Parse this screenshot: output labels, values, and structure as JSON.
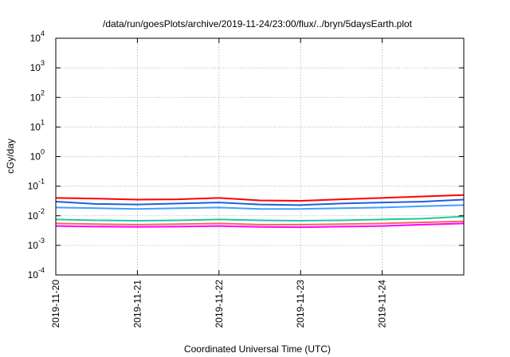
{
  "chart_data": {
    "type": "line",
    "title": "/data/run/goesPlots/archive/2019-11-24/23:00/flux/../bryn/5daysEarth.plot",
    "xlabel": "Coordinated Universal Time (UTC)",
    "ylabel": "cGy/day",
    "xscale": "time",
    "yscale": "log",
    "xlim": [
      "2019-11-20T00:00",
      "2019-11-25T00:00"
    ],
    "ylim": [
      0.0001,
      10000
    ],
    "grid": true,
    "legend": "none",
    "x_tick_labels": [
      "2019-11-20",
      "2019-11-21",
      "2019-11-22",
      "2019-11-23",
      "2019-11-24"
    ],
    "y_ticks": [
      {
        "value": 0.0001,
        "base": "10",
        "exp": "-4"
      },
      {
        "value": 0.001,
        "base": "10",
        "exp": "-3"
      },
      {
        "value": 0.01,
        "base": "10",
        "exp": "-2"
      },
      {
        "value": 0.1,
        "base": "10",
        "exp": "-1"
      },
      {
        "value": 1,
        "base": "10",
        "exp": "0"
      },
      {
        "value": 10,
        "base": "10",
        "exp": "1"
      },
      {
        "value": 100,
        "base": "10",
        "exp": "2"
      },
      {
        "value": 1000,
        "base": "10",
        "exp": "3"
      },
      {
        "value": 10000,
        "base": "10",
        "exp": "4"
      }
    ],
    "series_colors": [
      "#ff0000",
      "#1f5fdc",
      "#3ea0ff",
      "#20c8a0",
      "#ff6060",
      "#ff00ff"
    ],
    "series": [
      {
        "color": "#ff0000",
        "x": [
          "2019-11-20T00:00",
          "2019-11-20T12:00",
          "2019-11-21T00:00",
          "2019-11-21T12:00",
          "2019-11-22T00:00",
          "2019-11-22T12:00",
          "2019-11-23T00:00",
          "2019-11-23T12:00",
          "2019-11-24T00:00",
          "2019-11-24T12:00",
          "2019-11-25T00:00"
        ],
        "y": [
          0.04,
          0.038,
          0.035,
          0.036,
          0.04,
          0.033,
          0.032,
          0.036,
          0.04,
          0.045,
          0.05
        ]
      },
      {
        "color": "#1f5fdc",
        "x": [
          "2019-11-20T00:00",
          "2019-11-20T12:00",
          "2019-11-21T00:00",
          "2019-11-21T12:00",
          "2019-11-22T00:00",
          "2019-11-22T12:00",
          "2019-11-23T00:00",
          "2019-11-23T12:00",
          "2019-11-24T00:00",
          "2019-11-24T12:00",
          "2019-11-25T00:00"
        ],
        "y": [
          0.03,
          0.025,
          0.024,
          0.026,
          0.028,
          0.024,
          0.023,
          0.026,
          0.028,
          0.03,
          0.035
        ]
      },
      {
        "color": "#3ea0ff",
        "x": [
          "2019-11-20T00:00",
          "2019-11-20T12:00",
          "2019-11-21T00:00",
          "2019-11-21T12:00",
          "2019-11-22T00:00",
          "2019-11-22T12:00",
          "2019-11-23T00:00",
          "2019-11-23T12:00",
          "2019-11-24T00:00",
          "2019-11-24T12:00",
          "2019-11-25T00:00"
        ],
        "y": [
          0.019,
          0.018,
          0.017,
          0.018,
          0.019,
          0.017,
          0.017,
          0.018,
          0.019,
          0.021,
          0.023
        ]
      },
      {
        "color": "#20c8a0",
        "x": [
          "2019-11-20T00:00",
          "2019-11-20T12:00",
          "2019-11-21T00:00",
          "2019-11-21T12:00",
          "2019-11-22T00:00",
          "2019-11-22T12:00",
          "2019-11-23T00:00",
          "2019-11-23T12:00",
          "2019-11-24T00:00",
          "2019-11-24T12:00",
          "2019-11-25T00:00"
        ],
        "y": [
          0.0075,
          0.007,
          0.0068,
          0.007,
          0.0075,
          0.007,
          0.0068,
          0.007,
          0.0075,
          0.008,
          0.0095
        ]
      },
      {
        "color": "#ff6060",
        "x": [
          "2019-11-20T00:00",
          "2019-11-20T12:00",
          "2019-11-21T00:00",
          "2019-11-21T12:00",
          "2019-11-22T00:00",
          "2019-11-22T12:00",
          "2019-11-23T00:00",
          "2019-11-23T12:00",
          "2019-11-24T00:00",
          "2019-11-24T12:00",
          "2019-11-25T00:00"
        ],
        "y": [
          0.0055,
          0.0052,
          0.005,
          0.0052,
          0.0055,
          0.005,
          0.005,
          0.0052,
          0.0055,
          0.006,
          0.0065
        ]
      },
      {
        "color": "#ff00ff",
        "x": [
          "2019-11-20T00:00",
          "2019-11-20T12:00",
          "2019-11-21T00:00",
          "2019-11-21T12:00",
          "2019-11-22T00:00",
          "2019-11-22T12:00",
          "2019-11-23T00:00",
          "2019-11-23T12:00",
          "2019-11-24T00:00",
          "2019-11-24T12:00",
          "2019-11-25T00:00"
        ],
        "y": [
          0.0045,
          0.0043,
          0.0042,
          0.0043,
          0.0045,
          0.0042,
          0.0041,
          0.0043,
          0.0045,
          0.005,
          0.0055
        ]
      }
    ]
  }
}
